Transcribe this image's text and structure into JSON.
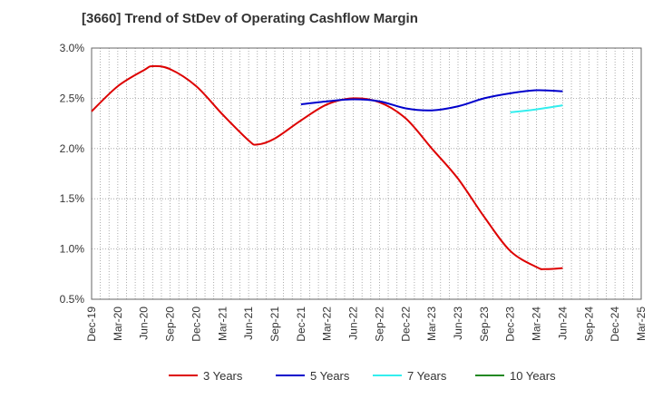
{
  "chart_data": {
    "type": "line",
    "title": "[3660]  Trend of StDev of Operating Cashflow Margin",
    "xlabel": "",
    "ylabel": "",
    "x_ticks": [
      "Dec-19",
      "Mar-20",
      "Jun-20",
      "Sep-20",
      "Dec-20",
      "Mar-21",
      "Jun-21",
      "Sep-21",
      "Dec-21",
      "Mar-22",
      "Jun-22",
      "Sep-22",
      "Dec-22",
      "Mar-23",
      "Jun-23",
      "Sep-23",
      "Dec-23",
      "Mar-24",
      "Jun-24",
      "Sep-24",
      "Dec-24",
      "Mar-25"
    ],
    "y_ticks": [
      "0.5%",
      "1.0%",
      "1.5%",
      "2.0%",
      "2.5%",
      "3.0%"
    ],
    "ylim": [
      0.5,
      3.0
    ],
    "grid": "vertical-dotted, horizontal-dotted",
    "legend_position": "bottom",
    "series": [
      {
        "name": "3 Years",
        "color": "#dd0000",
        "points": [
          {
            "x": "Dec-19",
            "y": 2.37
          },
          {
            "x": "Mar-20",
            "y": 2.62
          },
          {
            "x": "Jun-20",
            "y": 2.78
          },
          {
            "x": "Jul-20",
            "y": 2.82
          },
          {
            "x": "Sep-20",
            "y": 2.79
          },
          {
            "x": "Dec-20",
            "y": 2.62
          },
          {
            "x": "Mar-21",
            "y": 2.34
          },
          {
            "x": "Jun-21",
            "y": 2.08
          },
          {
            "x": "Jul-21",
            "y": 2.04
          },
          {
            "x": "Sep-21",
            "y": 2.1
          },
          {
            "x": "Dec-21",
            "y": 2.28
          },
          {
            "x": "Mar-22",
            "y": 2.44
          },
          {
            "x": "Jun-22",
            "y": 2.5
          },
          {
            "x": "Sep-22",
            "y": 2.46
          },
          {
            "x": "Dec-22",
            "y": 2.3
          },
          {
            "x": "Mar-23",
            "y": 2.0
          },
          {
            "x": "Jun-23",
            "y": 1.7
          },
          {
            "x": "Sep-23",
            "y": 1.32
          },
          {
            "x": "Dec-23",
            "y": 0.98
          },
          {
            "x": "Mar-24",
            "y": 0.82
          },
          {
            "x": "Apr-24",
            "y": 0.8
          },
          {
            "x": "Jun-24",
            "y": 0.81
          }
        ]
      },
      {
        "name": "5 Years",
        "color": "#0000cc",
        "points": [
          {
            "x": "Dec-21",
            "y": 2.44
          },
          {
            "x": "Mar-22",
            "y": 2.47
          },
          {
            "x": "Jun-22",
            "y": 2.49
          },
          {
            "x": "Sep-22",
            "y": 2.47
          },
          {
            "x": "Dec-22",
            "y": 2.4
          },
          {
            "x": "Mar-23",
            "y": 2.38
          },
          {
            "x": "Jun-23",
            "y": 2.42
          },
          {
            "x": "Sep-23",
            "y": 2.5
          },
          {
            "x": "Dec-23",
            "y": 2.55
          },
          {
            "x": "Mar-24",
            "y": 2.58
          },
          {
            "x": "Jun-24",
            "y": 2.57
          }
        ]
      },
      {
        "name": "7 Years",
        "color": "#33eeee",
        "points": [
          {
            "x": "Dec-23",
            "y": 2.36
          },
          {
            "x": "Mar-24",
            "y": 2.39
          },
          {
            "x": "Jun-24",
            "y": 2.43
          }
        ]
      },
      {
        "name": "10 Years",
        "color": "#228822",
        "points": []
      }
    ]
  }
}
